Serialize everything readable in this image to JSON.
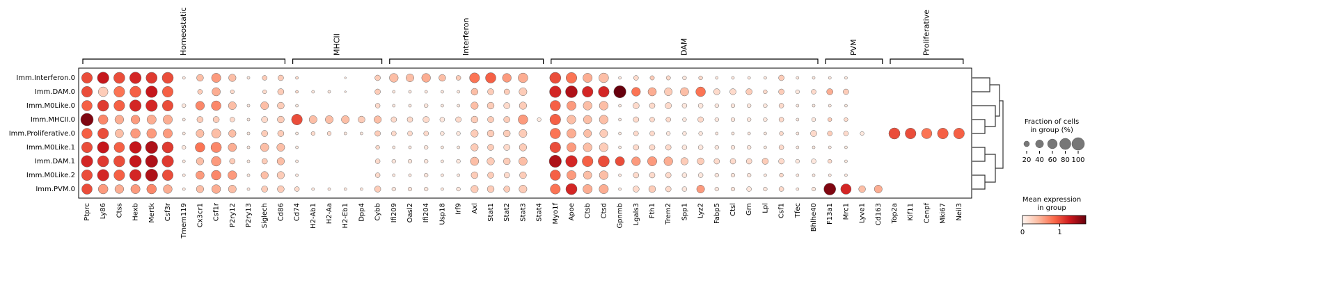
{
  "chart_data": {
    "type": "dotplot",
    "groups": [
      "Imm.Interferon.0",
      "Imm.DAM.0",
      "Imm.M0Like.0",
      "Imm.MHCII.0",
      "Imm.Proliferative.0",
      "Imm.M0Like.1",
      "Imm.DAM.1",
      "Imm.M0Like.2",
      "Imm.PVM.0"
    ],
    "gene_groups": [
      {
        "label": "Homeostatic",
        "genes": [
          "Ptprc",
          "Ly86",
          "Ctss",
          "Hexb",
          "Mertk",
          "Csf3r",
          "Tmem119",
          "Cx3cr1",
          "Csf1r",
          "P2ry12",
          "P2ry13",
          "Siglech",
          "Cd86"
        ]
      },
      {
        "label": "MHCII",
        "genes": [
          "Cd74",
          "H2-Ab1",
          "H2-Aa",
          "H2-Eb1",
          "Dpp4",
          "Cybb"
        ]
      },
      {
        "label": "Interferon",
        "genes": [
          "Ifi209",
          "Oasl2",
          "Ifi204",
          "Usp18",
          "Irf9",
          "Axl",
          "Stat1",
          "Stat2",
          "Stat3",
          "Stat4"
        ]
      },
      {
        "label": "DAM",
        "genes": [
          "Myo1f",
          "Apoe",
          "Ctsb",
          "Ctsd",
          "Gpnmb",
          "Lgals3",
          "Fth1",
          "Trem2",
          "Spp1",
          "Lyz2",
          "Fabp5",
          "Ctsl",
          "Grn",
          "Lpl",
          "Csf1",
          "Tfec",
          "Bhlhe40"
        ]
      },
      {
        "label": "PVM",
        "genes": [
          "F13a1",
          "Mrc1",
          "Lyve1",
          "Cd163"
        ]
      },
      {
        "label": "Proliferative",
        "genes": [
          "Top2a",
          "Kif11",
          "Cenpf",
          "Mki67",
          "Neil3"
        ]
      }
    ],
    "fraction": [
      [
        75,
        85,
        80,
        85,
        80,
        80,
        5,
        30,
        55,
        35,
        5,
        15,
        20,
        5,
        0,
        0,
        2,
        0,
        20,
        50,
        40,
        50,
        30,
        15,
        65,
        70,
        50,
        60,
        0,
        80,
        75,
        55,
        60,
        5,
        15,
        12,
        12,
        10,
        10,
        5,
        5,
        5,
        5,
        20,
        5,
        5,
        5,
        5,
        0,
        0,
        0,
        0,
        0,
        0,
        0
      ],
      [
        75,
        60,
        75,
        80,
        85,
        75,
        0,
        15,
        45,
        10,
        0,
        10,
        25,
        5,
        5,
        5,
        2,
        0,
        20,
        5,
        5,
        5,
        5,
        5,
        30,
        25,
        20,
        40,
        0,
        85,
        90,
        75,
        75,
        95,
        50,
        45,
        40,
        45,
        60,
        25,
        25,
        25,
        10,
        20,
        10,
        15,
        25,
        20,
        0,
        0,
        0,
        0,
        0,
        0,
        0
      ],
      [
        70,
        80,
        75,
        85,
        85,
        75,
        10,
        50,
        60,
        40,
        5,
        40,
        30,
        5,
        0,
        0,
        0,
        0,
        15,
        5,
        5,
        10,
        5,
        5,
        35,
        30,
        25,
        35,
        0,
        70,
        55,
        50,
        50,
        5,
        25,
        20,
        25,
        15,
        15,
        10,
        10,
        10,
        10,
        15,
        5,
        5,
        5,
        5,
        0,
        0,
        0,
        0,
        0,
        0,
        0
      ],
      [
        100,
        60,
        50,
        50,
        55,
        55,
        5,
        25,
        25,
        15,
        5,
        25,
        30,
        75,
        40,
        40,
        40,
        30,
        35,
        20,
        20,
        25,
        15,
        20,
        30,
        25,
        25,
        60,
        10,
        75,
        50,
        45,
        50,
        5,
        20,
        15,
        15,
        10,
        20,
        10,
        10,
        10,
        10,
        15,
        5,
        10,
        10,
        10,
        0,
        0,
        0,
        0,
        0,
        0,
        0
      ],
      [
        70,
        75,
        45,
        60,
        60,
        55,
        5,
        40,
        55,
        35,
        5,
        25,
        25,
        5,
        10,
        10,
        5,
        5,
        20,
        15,
        15,
        15,
        10,
        10,
        35,
        30,
        30,
        40,
        0,
        70,
        55,
        40,
        40,
        5,
        15,
        15,
        10,
        10,
        10,
        5,
        5,
        5,
        5,
        10,
        5,
        25,
        15,
        15,
        10,
        0,
        80,
        75,
        70,
        75,
        75
      ],
      [
        75,
        85,
        70,
        90,
        95,
        80,
        10,
        60,
        70,
        45,
        5,
        45,
        40,
        5,
        0,
        0,
        0,
        0,
        10,
        5,
        5,
        10,
        5,
        5,
        35,
        25,
        25,
        35,
        0,
        75,
        55,
        50,
        50,
        5,
        20,
        20,
        20,
        15,
        15,
        10,
        10,
        10,
        5,
        15,
        5,
        5,
        5,
        5,
        0,
        0,
        0,
        0,
        0,
        0,
        0
      ],
      [
        85,
        80,
        80,
        90,
        95,
        85,
        5,
        35,
        60,
        20,
        5,
        20,
        35,
        5,
        0,
        0,
        0,
        0,
        15,
        10,
        10,
        10,
        5,
        10,
        45,
        35,
        30,
        45,
        0,
        95,
        85,
        75,
        80,
        55,
        50,
        55,
        50,
        35,
        30,
        20,
        20,
        20,
        25,
        20,
        10,
        15,
        10,
        5,
        0,
        0,
        0,
        0,
        0,
        0,
        0
      ],
      [
        75,
        85,
        75,
        85,
        95,
        75,
        5,
        45,
        60,
        50,
        5,
        35,
        35,
        5,
        0,
        0,
        0,
        0,
        15,
        5,
        5,
        10,
        5,
        5,
        30,
        25,
        20,
        30,
        0,
        70,
        55,
        45,
        50,
        5,
        20,
        20,
        20,
        15,
        15,
        10,
        10,
        10,
        5,
        10,
        5,
        5,
        5,
        5,
        0,
        0,
        0,
        0,
        0,
        0,
        0
      ],
      [
        70,
        60,
        50,
        55,
        60,
        50,
        5,
        35,
        50,
        40,
        5,
        25,
        30,
        15,
        5,
        5,
        5,
        5,
        25,
        10,
        10,
        10,
        5,
        10,
        35,
        30,
        25,
        40,
        0,
        65,
        80,
        55,
        55,
        5,
        25,
        30,
        20,
        15,
        40,
        10,
        10,
        15,
        10,
        15,
        5,
        10,
        90,
        70,
        30,
        40,
        0,
        0,
        0,
        0,
        0
      ]
    ],
    "mean": [
      [
        1.0,
        1.3,
        1.0,
        1.2,
        1.1,
        1.0,
        0.1,
        0.4,
        0.6,
        0.4,
        0.1,
        0.3,
        0.3,
        0.2,
        0,
        0,
        0.1,
        0,
        0.3,
        0.4,
        0.4,
        0.5,
        0.4,
        0.3,
        0.8,
        0.9,
        0.6,
        0.5,
        0,
        1.0,
        0.8,
        0.5,
        0.4,
        0.1,
        0.2,
        0.3,
        0.2,
        0.1,
        0.2,
        0.1,
        0.1,
        0.1,
        0.1,
        0.3,
        0.1,
        0.1,
        0.1,
        0.1,
        0,
        0,
        0,
        0,
        0,
        0,
        0
      ],
      [
        1.0,
        0.3,
        0.8,
        0.9,
        1.3,
        0.9,
        0,
        0.3,
        0.5,
        0.2,
        0,
        0.2,
        0.3,
        0.2,
        0.1,
        0.1,
        0.1,
        0,
        0.3,
        0.1,
        0.1,
        0.1,
        0.1,
        0.1,
        0.4,
        0.3,
        0.3,
        0.3,
        0,
        1.2,
        1.4,
        1.2,
        1.2,
        1.7,
        0.8,
        0.5,
        0.3,
        0.4,
        0.8,
        0.2,
        0.2,
        0.3,
        0.2,
        0.3,
        0.1,
        0.2,
        0.5,
        0.3,
        0,
        0,
        0,
        0,
        0,
        0,
        0
      ],
      [
        0.9,
        1.1,
        0.9,
        1.2,
        1.2,
        1.0,
        0.1,
        0.7,
        0.7,
        0.4,
        0.1,
        0.4,
        0.3,
        0.1,
        0,
        0,
        0,
        0,
        0.2,
        0.1,
        0.1,
        0.1,
        0.1,
        0.1,
        0.4,
        0.3,
        0.2,
        0.3,
        0,
        0.9,
        0.6,
        0.4,
        0.4,
        0.1,
        0.2,
        0.2,
        0.2,
        0.1,
        0.1,
        0.1,
        0.1,
        0.1,
        0.1,
        0.2,
        0.1,
        0.1,
        0.1,
        0.1,
        0,
        0,
        0,
        0,
        0,
        0,
        0
      ],
      [
        1.6,
        0.7,
        0.5,
        0.6,
        0.5,
        0.5,
        0.1,
        0.3,
        0.3,
        0.2,
        0.1,
        0.2,
        0.3,
        1.0,
        0.4,
        0.4,
        0.4,
        0.3,
        0.4,
        0.2,
        0.2,
        0.2,
        0.1,
        0.2,
        0.3,
        0.3,
        0.3,
        0.6,
        0.1,
        0.9,
        0.4,
        0.4,
        0.4,
        0.1,
        0.2,
        0.2,
        0.2,
        0.1,
        0.2,
        0.1,
        0.1,
        0.1,
        0.1,
        0.2,
        0.1,
        0.1,
        0.3,
        0.2,
        0,
        0,
        0,
        0,
        0,
        0,
        0
      ],
      [
        0.9,
        1.0,
        0.4,
        0.6,
        0.6,
        0.6,
        0.1,
        0.4,
        0.4,
        0.4,
        0.1,
        0.3,
        0.3,
        0.1,
        0.2,
        0.2,
        0.1,
        0.1,
        0.3,
        0.2,
        0.2,
        0.2,
        0.1,
        0.1,
        0.3,
        0.3,
        0.3,
        0.3,
        0,
        0.8,
        0.5,
        0.4,
        0.3,
        0.1,
        0.2,
        0.2,
        0.1,
        0.1,
        0.1,
        0.1,
        0.1,
        0.1,
        0.1,
        0.2,
        0.1,
        0.2,
        0.3,
        0.2,
        0.1,
        0,
        1.0,
        1.0,
        0.8,
        0.9,
        0.9
      ],
      [
        1.0,
        1.3,
        0.9,
        1.3,
        1.4,
        1.1,
        0.1,
        0.8,
        0.7,
        0.5,
        0.1,
        0.4,
        0.4,
        0.1,
        0,
        0,
        0,
        0,
        0.2,
        0.1,
        0.1,
        0.1,
        0.1,
        0.1,
        0.3,
        0.3,
        0.2,
        0.3,
        0,
        1.0,
        0.6,
        0.4,
        0.3,
        0.1,
        0.2,
        0.2,
        0.2,
        0.1,
        0.1,
        0.1,
        0.1,
        0.1,
        0.1,
        0.2,
        0.1,
        0.1,
        0.1,
        0.1,
        0,
        0,
        0,
        0,
        0,
        0,
        0
      ],
      [
        1.2,
        1.1,
        1.0,
        1.3,
        1.4,
        1.1,
        0.1,
        0.4,
        0.6,
        0.3,
        0.1,
        0.3,
        0.4,
        0.1,
        0,
        0,
        0,
        0,
        0.2,
        0.1,
        0.1,
        0.1,
        0.1,
        0.1,
        0.4,
        0.3,
        0.3,
        0.4,
        0,
        1.4,
        1.2,
        0.9,
        1.0,
        1.0,
        0.6,
        0.6,
        0.5,
        0.3,
        0.3,
        0.2,
        0.2,
        0.2,
        0.3,
        0.2,
        0.1,
        0.1,
        0.2,
        0.1,
        0,
        0,
        0,
        0,
        0,
        0,
        0
      ],
      [
        1.0,
        1.2,
        0.9,
        1.2,
        1.4,
        1.0,
        0.1,
        0.6,
        0.7,
        0.6,
        0.1,
        0.4,
        0.3,
        0.1,
        0,
        0,
        0,
        0,
        0.2,
        0.1,
        0.1,
        0.1,
        0.1,
        0.1,
        0.3,
        0.3,
        0.2,
        0.3,
        0,
        0.9,
        0.6,
        0.4,
        0.4,
        0.1,
        0.2,
        0.2,
        0.2,
        0.1,
        0.1,
        0.1,
        0.1,
        0.1,
        0.1,
        0.2,
        0.1,
        0.1,
        0.1,
        0.1,
        0,
        0,
        0,
        0,
        0,
        0,
        0
      ],
      [
        1.0,
        0.6,
        0.5,
        0.6,
        0.7,
        0.5,
        0.1,
        0.4,
        0.5,
        0.4,
        0.1,
        0.3,
        0.3,
        0.2,
        0.1,
        0.1,
        0.1,
        0.1,
        0.3,
        0.1,
        0.1,
        0.1,
        0.1,
        0.1,
        0.3,
        0.3,
        0.3,
        0.3,
        0,
        0.8,
        1.2,
        0.5,
        0.5,
        0.1,
        0.2,
        0.3,
        0.2,
        0.1,
        0.6,
        0.1,
        0.1,
        0.1,
        0.1,
        0.2,
        0.1,
        0.1,
        1.6,
        1.2,
        0.4,
        0.5,
        0,
        0,
        0,
        0,
        0
      ]
    ],
    "size_legend": {
      "title": [
        "Fraction of cells",
        "in group (%)"
      ],
      "ticks": [
        20,
        40,
        60,
        80,
        100
      ],
      "max": 100
    },
    "color_legend": {
      "title": [
        "Mean expression",
        "in group"
      ],
      "lim": [
        0,
        1.7
      ],
      "ticks": [
        0,
        1
      ],
      "cmap": [
        "#fff5f0",
        "#fcbba1",
        "#fb6a4a",
        "#cb181d",
        "#67000d"
      ]
    }
  }
}
